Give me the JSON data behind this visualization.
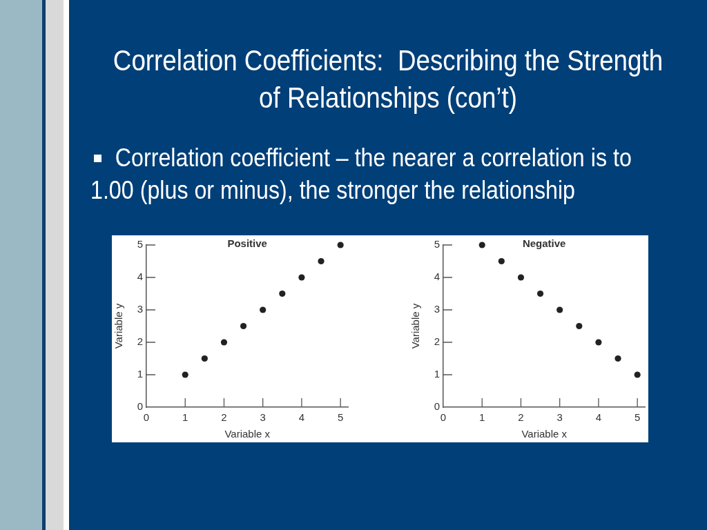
{
  "chart_data": [
    {
      "type": "other",
      "title": "Correlation Coefficients:  Describing the Strength of Relationships (con’t)",
      "annotations": [
        "Correlation coefficient – the nearer a correlation is to 1.00 (plus or minus), the stronger the relationship"
      ]
    },
    {
      "type": "scatter",
      "title": "Positive",
      "xlabel": "Variable x",
      "ylabel": "Variable y",
      "x": [
        1,
        1.5,
        2,
        2.5,
        3,
        3.5,
        4,
        4.5,
        5
      ],
      "values": [
        1,
        1.5,
        2,
        2.5,
        3,
        3.5,
        4,
        4.5,
        5
      ],
      "color": "#222222",
      "marker": "circle",
      "xlim": [
        0,
        5.2
      ],
      "ylim": [
        0,
        5
      ],
      "xticks": [
        0,
        1,
        2,
        3,
        4,
        5
      ],
      "yticks": [
        0,
        1,
        2,
        3,
        4,
        5
      ]
    },
    {
      "type": "scatter",
      "title": "Negative",
      "xlabel": "Variable x",
      "ylabel": "Variable y",
      "x": [
        1,
        1.5,
        2,
        2.5,
        3,
        3.5,
        4,
        4.5,
        5
      ],
      "values": [
        5,
        4.5,
        4,
        3.5,
        3,
        2.5,
        2,
        1.5,
        1
      ],
      "color": "#222222",
      "marker": "circle",
      "xlim": [
        0,
        5.2
      ],
      "ylim": [
        0,
        5
      ],
      "xticks": [
        0,
        1,
        2,
        3,
        4,
        5
      ],
      "yticks": [
        0,
        1,
        2,
        3,
        4,
        5
      ]
    }
  ]
}
